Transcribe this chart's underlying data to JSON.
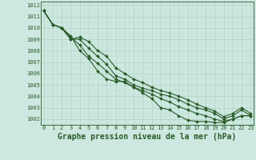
{
  "title": "Graphe pression niveau de la mer (hPa)",
  "xlabel_hours": [
    0,
    1,
    2,
    3,
    4,
    5,
    6,
    7,
    8,
    9,
    10,
    11,
    12,
    13,
    14,
    15,
    16,
    17,
    18,
    19,
    20,
    21,
    22,
    23
  ],
  "ylim": [
    1001.5,
    1012.3
  ],
  "xlim": [
    -0.3,
    23.3
  ],
  "yticks": [
    1002,
    1003,
    1004,
    1005,
    1006,
    1007,
    1008,
    1009,
    1010,
    1011,
    1012
  ],
  "background_color": "#cce8e0",
  "grid_major_color": "#aaccbb",
  "grid_minor_color": "#bbddcc",
  "line_color": "#2a5c2a",
  "series": [
    [
      1011.5,
      1010.3,
      1010.0,
      1009.3,
      1008.0,
      1007.3,
      1006.2,
      1005.5,
      1005.3,
      1005.3,
      1004.8,
      1004.3,
      1003.8,
      1003.0,
      1002.8,
      1002.3,
      1001.9,
      1001.8,
      1001.8,
      1001.7,
      1001.7,
      1002.0,
      1002.3,
      1002.3
    ],
    [
      1011.5,
      1010.3,
      1010.0,
      1009.2,
      1008.5,
      1007.5,
      1006.9,
      1006.2,
      1005.5,
      1005.2,
      1004.8,
      1004.5,
      1004.2,
      1003.8,
      1003.5,
      1003.1,
      1002.8,
      1002.5,
      1002.3,
      1002.0,
      1001.8,
      1002.0,
      1002.3,
      1002.3
    ],
    [
      1011.5,
      1010.3,
      1010.0,
      1009.0,
      1009.0,
      1008.2,
      1007.5,
      1006.8,
      1005.8,
      1005.5,
      1005.0,
      1004.7,
      1004.5,
      1004.2,
      1004.0,
      1003.7,
      1003.3,
      1003.0,
      1002.8,
      1002.5,
      1002.0,
      1002.3,
      1002.8,
      1002.3
    ],
    [
      1011.5,
      1010.3,
      1010.0,
      1009.0,
      1009.2,
      1008.8,
      1008.0,
      1007.5,
      1006.5,
      1006.0,
      1005.5,
      1005.2,
      1004.8,
      1004.5,
      1004.3,
      1004.0,
      1003.7,
      1003.3,
      1003.0,
      1002.7,
      1002.2,
      1002.5,
      1003.0,
      1002.5
    ]
  ],
  "marker": "D",
  "marker_size": 2.0,
  "line_width": 0.8,
  "title_fontsize": 7,
  "tick_fontsize": 5,
  "label_color": "#2a5c2a"
}
